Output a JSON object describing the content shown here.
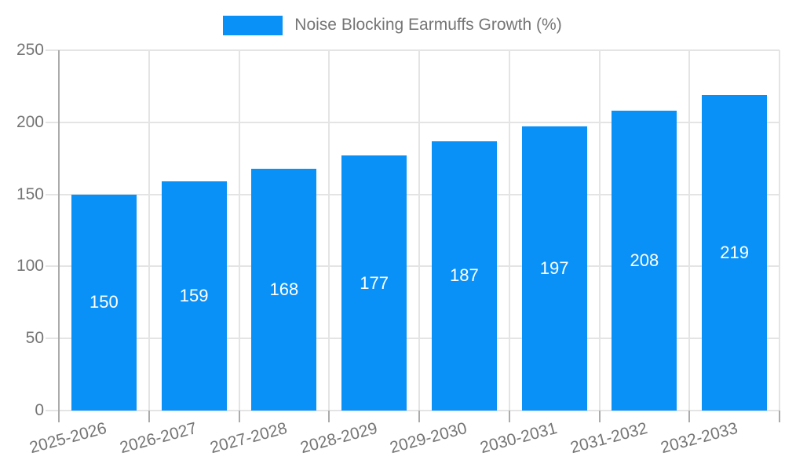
{
  "legend": {
    "label": "Noise Blocking Earmuffs Growth (%)"
  },
  "colors": {
    "bar": "#0a91f8",
    "grid": "#e4e4e4",
    "axis": "#ababab",
    "text": "#757575",
    "value_label": "#ffffff",
    "background": "#ffffff"
  },
  "chart_data": {
    "type": "bar",
    "title": "Noise Blocking Earmuffs Growth (%)",
    "categories": [
      "2025-2026",
      "2026-2027",
      "2027-2028",
      "2028-2029",
      "2029-2030",
      "2030-2031",
      "2031-2032",
      "2032-2033"
    ],
    "values": [
      150,
      159,
      168,
      177,
      187,
      197,
      208,
      219
    ],
    "yticks": [
      0,
      50,
      100,
      150,
      200,
      250
    ],
    "ylim": [
      0,
      250
    ],
    "xlabel": "",
    "ylabel": "",
    "grid": true,
    "legend_position": "top",
    "value_labels": "inside-center",
    "xlabel_rotation_deg": -15
  }
}
